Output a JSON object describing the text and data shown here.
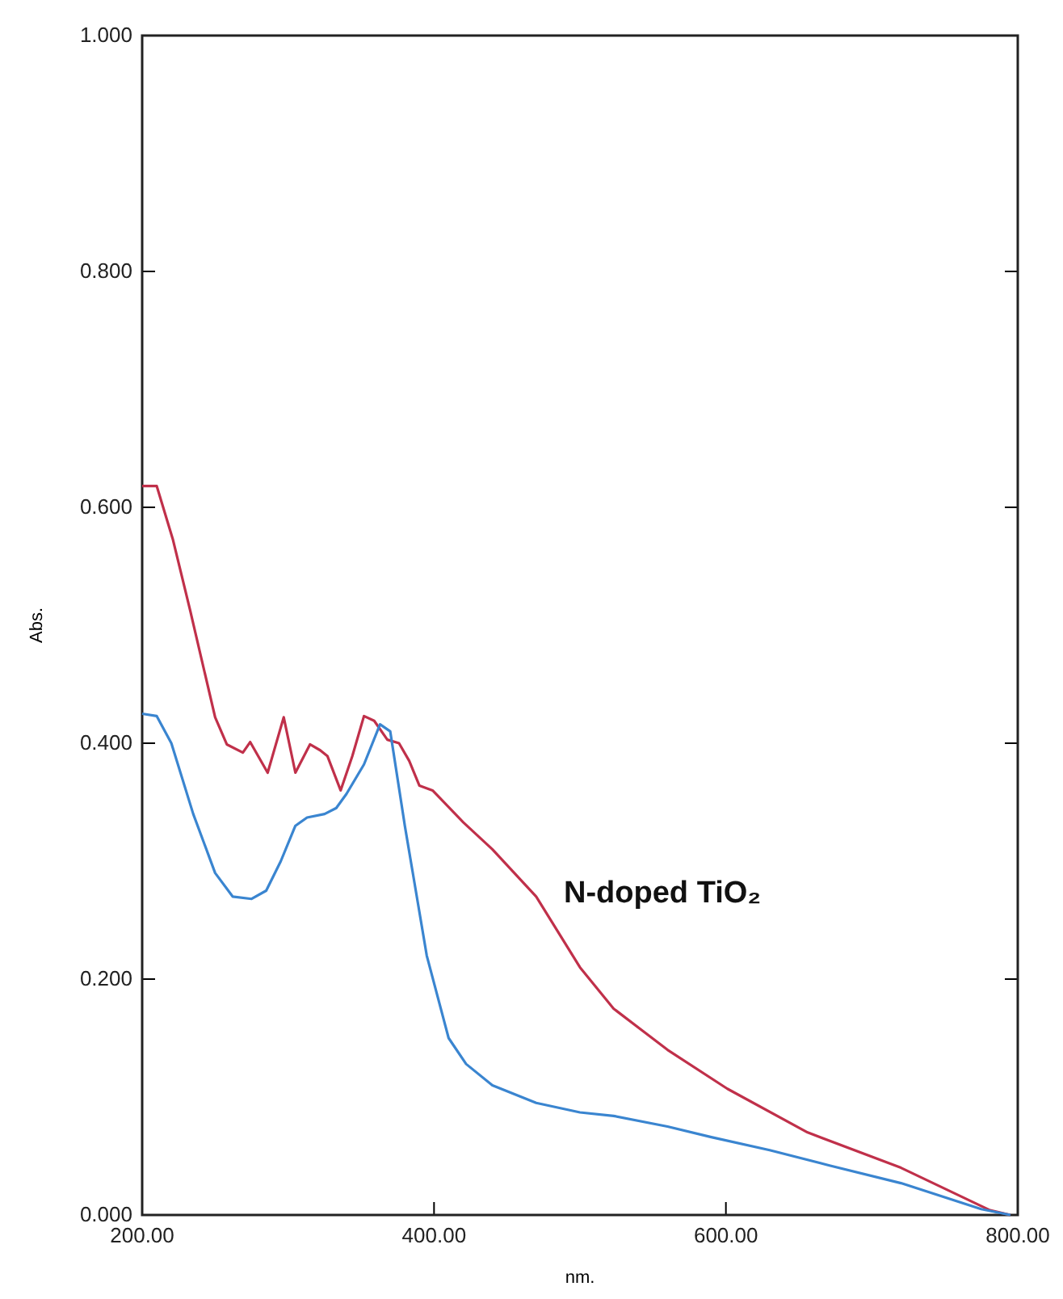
{
  "chart_data": {
    "type": "line",
    "xlabel": "nm.",
    "ylabel": "Abs.",
    "xlim": [
      200,
      800
    ],
    "ylim": [
      0,
      1
    ],
    "xticks": [
      {
        "value": 200,
        "label": "200.00"
      },
      {
        "value": 400,
        "label": "400.00"
      },
      {
        "value": 600,
        "label": "600.00"
      },
      {
        "value": 800,
        "label": "800.00"
      }
    ],
    "yticks": [
      {
        "value": 0,
        "label": "0.000"
      },
      {
        "value": 0.2,
        "label": "0.200"
      },
      {
        "value": 0.4,
        "label": "0.400"
      },
      {
        "value": 0.6,
        "label": "0.600"
      },
      {
        "value": 0.8,
        "label": "0.800"
      },
      {
        "value": 1,
        "label": "1.000"
      }
    ],
    "grid": false,
    "line_style": "solid",
    "marker": "none",
    "series": [
      {
        "name": "N-doped TiO₂",
        "color": "#c0304a",
        "x": [
          200,
          210,
          221,
          233,
          250,
          258,
          269,
          274,
          286,
          297,
          305,
          315,
          322,
          327,
          336,
          344,
          352,
          359,
          368,
          376,
          383,
          390,
          399,
          420,
          440,
          470,
          500,
          523,
          560,
          601,
          656,
          720,
          781,
          795
        ],
        "values": [
          0.618,
          0.618,
          0.573,
          0.512,
          0.422,
          0.399,
          0.392,
          0.401,
          0.375,
          0.422,
          0.375,
          0.399,
          0.394,
          0.389,
          0.36,
          0.389,
          0.423,
          0.419,
          0.403,
          0.4,
          0.385,
          0.364,
          0.36,
          0.333,
          0.31,
          0.27,
          0.21,
          0.175,
          0.14,
          0.107,
          0.07,
          0.04,
          0.004,
          0
        ]
      },
      {
        "color": "#3a85d0",
        "x": [
          200,
          210,
          220,
          235,
          250,
          262,
          275,
          285,
          295,
          305,
          313,
          325,
          333,
          340,
          352,
          363,
          370,
          380,
          395,
          410,
          422,
          440,
          470,
          500,
          523,
          560,
          590,
          630,
          671,
          720,
          775,
          795
        ],
        "values": [
          0.425,
          0.423,
          0.4,
          0.34,
          0.29,
          0.27,
          0.268,
          0.275,
          0.3,
          0.33,
          0.337,
          0.34,
          0.345,
          0.357,
          0.382,
          0.416,
          0.41,
          0.33,
          0.22,
          0.15,
          0.128,
          0.11,
          0.095,
          0.087,
          0.084,
          0.075,
          0.066,
          0.055,
          0.042,
          0.027,
          0.005,
          0
        ]
      }
    ]
  }
}
